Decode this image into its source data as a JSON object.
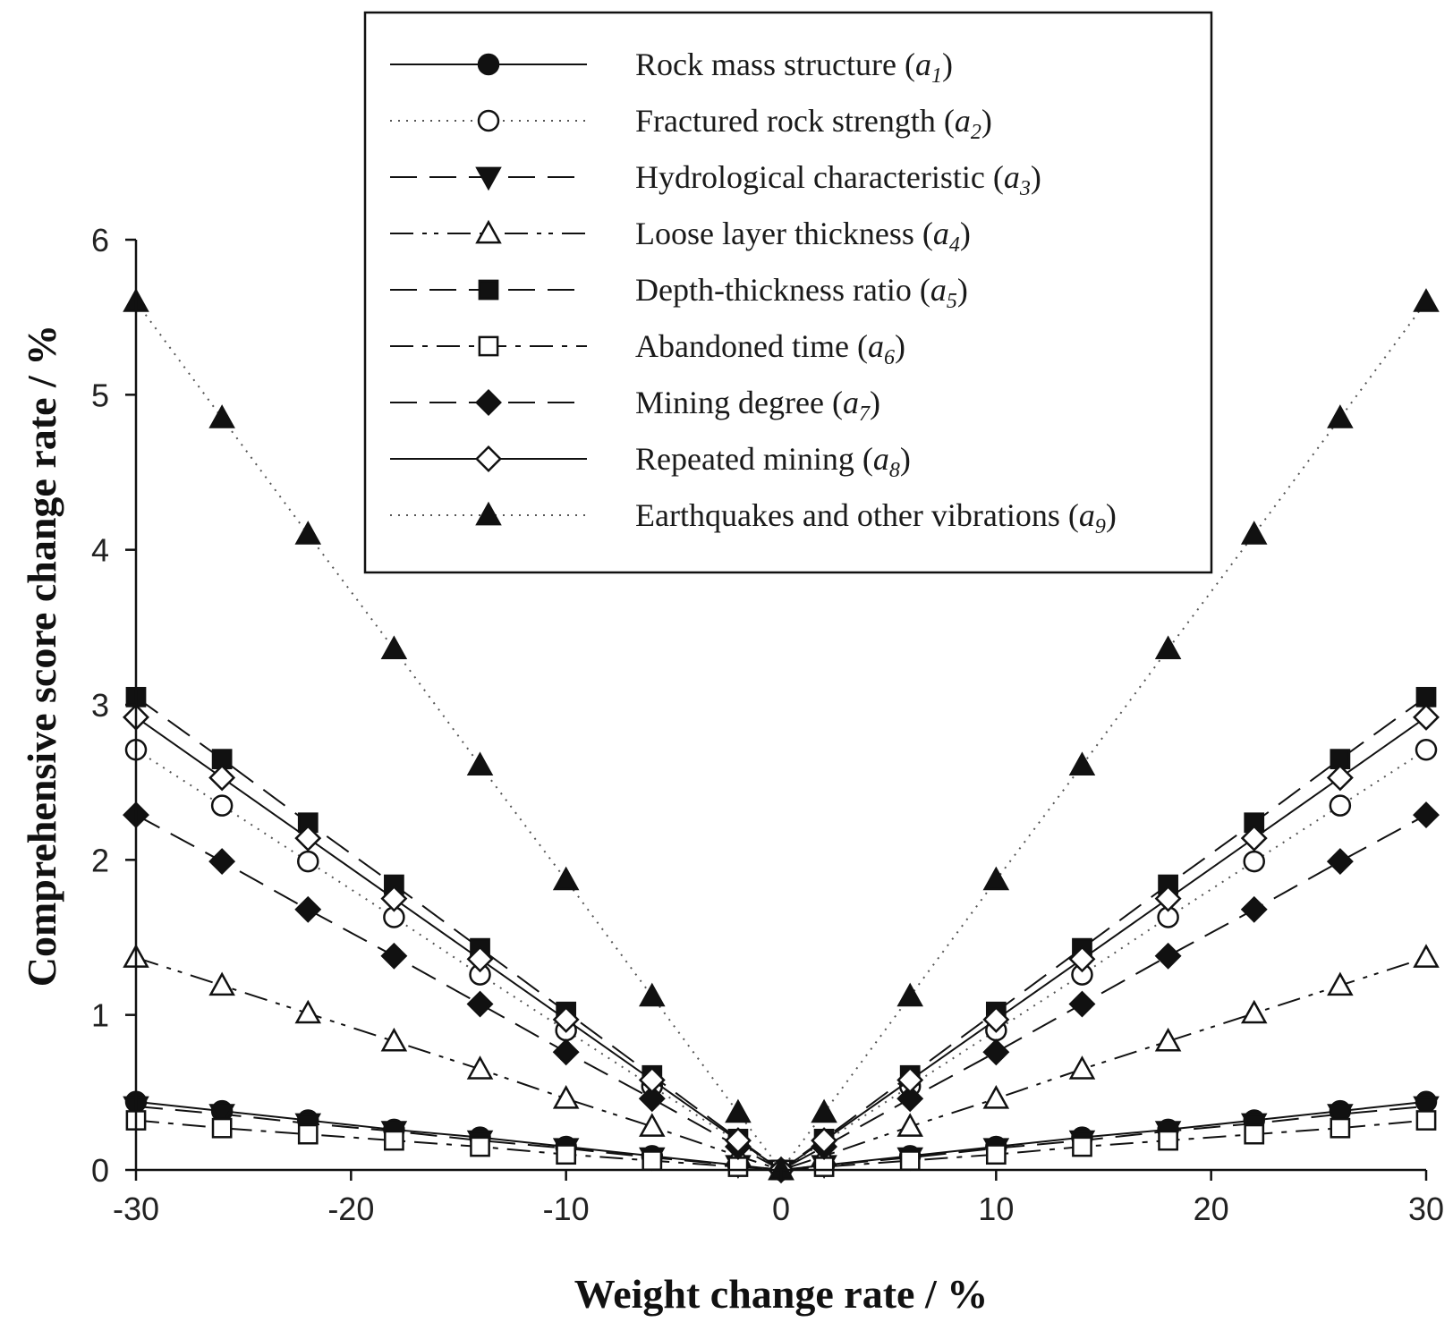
{
  "chart_data": {
    "type": "line",
    "title": "",
    "xlabel": "Weight change rate / %",
    "ylabel": "Comprehensive score change rate / %",
    "xlim": [
      -30,
      30
    ],
    "ylim": [
      0,
      6
    ],
    "xticks": [
      -30,
      -20,
      -10,
      0,
      10,
      20,
      30
    ],
    "yticks": [
      0,
      1,
      2,
      3,
      4,
      5,
      6
    ],
    "xtick_labels": [
      "-30",
      "-20",
      "-10",
      "0",
      "10",
      "20",
      "30"
    ],
    "ytick_labels": [
      "0",
      "1",
      "2",
      "3",
      "4",
      "5",
      "6"
    ],
    "grid": false,
    "legend_position": "top-center",
    "x": [
      -30,
      -26,
      -22,
      -18,
      -14,
      -10,
      -6,
      -2,
      0,
      2,
      6,
      10,
      14,
      18,
      22,
      26,
      30
    ],
    "series": [
      {
        "name": "Rock mass structure",
        "symbol": "a",
        "subscript": "1",
        "marker": "circle",
        "filled": true,
        "dash": "solid",
        "values": [
          0.44,
          0.38,
          0.32,
          0.26,
          0.21,
          0.15,
          0.09,
          0.03,
          0,
          0.03,
          0.09,
          0.15,
          0.21,
          0.26,
          0.32,
          0.38,
          0.44
        ]
      },
      {
        "name": "Fractured rock strength",
        "symbol": "a",
        "subscript": "2",
        "marker": "circle",
        "filled": false,
        "dash": "dotted",
        "values": [
          2.71,
          2.35,
          1.99,
          1.63,
          1.26,
          0.9,
          0.54,
          0.18,
          0,
          0.18,
          0.54,
          0.9,
          1.26,
          1.63,
          1.99,
          2.35,
          2.71
        ]
      },
      {
        "name": "Hydrological characteristic",
        "symbol": "a",
        "subscript": "3",
        "marker": "triangle-down",
        "filled": true,
        "dash": "long-dash",
        "values": [
          0.41,
          0.36,
          0.3,
          0.25,
          0.19,
          0.14,
          0.08,
          0.03,
          0,
          0.03,
          0.08,
          0.14,
          0.19,
          0.25,
          0.3,
          0.36,
          0.41
        ]
      },
      {
        "name": "Loose layer thickness",
        "symbol": "a",
        "subscript": "4",
        "marker": "triangle-up",
        "filled": false,
        "dash": "dash-dot-dot",
        "values": [
          1.37,
          1.19,
          1.01,
          0.83,
          0.65,
          0.46,
          0.28,
          0.09,
          0,
          0.09,
          0.28,
          0.46,
          0.65,
          0.83,
          1.01,
          1.19,
          1.37
        ]
      },
      {
        "name": "Depth-thickness ratio",
        "symbol": "a",
        "subscript": "5",
        "marker": "square",
        "filled": true,
        "dash": "long-dash",
        "values": [
          3.05,
          2.65,
          2.24,
          1.84,
          1.43,
          1.02,
          0.61,
          0.2,
          0,
          0.2,
          0.61,
          1.02,
          1.43,
          1.84,
          2.24,
          2.65,
          3.05
        ]
      },
      {
        "name": "Abandoned time",
        "symbol": "a",
        "subscript": "6",
        "marker": "square",
        "filled": false,
        "dash": "dash-dot",
        "values": [
          0.32,
          0.27,
          0.23,
          0.19,
          0.15,
          0.1,
          0.06,
          0.02,
          0,
          0.02,
          0.06,
          0.1,
          0.15,
          0.19,
          0.23,
          0.27,
          0.32
        ]
      },
      {
        "name": "Mining degree",
        "symbol": "a",
        "subscript": "7",
        "marker": "diamond",
        "filled": true,
        "dash": "long-dash",
        "values": [
          2.29,
          1.99,
          1.68,
          1.38,
          1.07,
          0.76,
          0.46,
          0.15,
          0,
          0.15,
          0.46,
          0.76,
          1.07,
          1.38,
          1.68,
          1.99,
          2.29
        ]
      },
      {
        "name": "Repeated mining",
        "symbol": "a",
        "subscript": "8",
        "marker": "diamond",
        "filled": false,
        "dash": "solid",
        "values": [
          2.92,
          2.53,
          2.14,
          1.75,
          1.36,
          0.97,
          0.58,
          0.19,
          0,
          0.19,
          0.58,
          0.97,
          1.36,
          1.75,
          2.14,
          2.53,
          2.92
        ]
      },
      {
        "name": "Earthquakes and other vibrations",
        "symbol": "a",
        "subscript": "9",
        "marker": "triangle-up",
        "filled": true,
        "dash": "dotted",
        "values": [
          5.6,
          4.85,
          4.1,
          3.36,
          2.61,
          1.87,
          1.12,
          0.37,
          0,
          0.37,
          1.12,
          1.87,
          2.61,
          3.36,
          4.1,
          4.85,
          5.6
        ]
      }
    ]
  },
  "colors": {
    "ink": "#111111",
    "background": "#ffffff"
  }
}
